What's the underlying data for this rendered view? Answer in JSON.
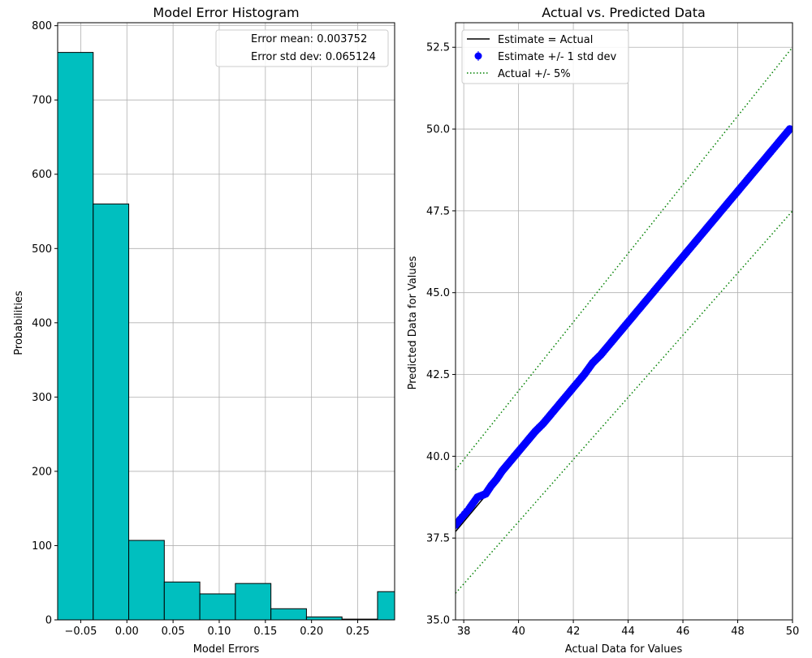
{
  "chart_data": [
    {
      "type": "bar",
      "title": "Model Error Histogram",
      "xlabel": "Model Errors",
      "ylabel": "Probabilities",
      "xlim": [
        -0.075,
        0.29
      ],
      "ylim": [
        0,
        804
      ],
      "xticks": [
        -0.05,
        0.0,
        0.05,
        0.1,
        0.15,
        0.2,
        0.25
      ],
      "xtick_labels": [
        "−0.05",
        "0.00",
        "0.05",
        "0.10",
        "0.15",
        "0.20",
        "0.25"
      ],
      "yticks": [
        0,
        100,
        200,
        300,
        400,
        500,
        600,
        700,
        800
      ],
      "ytick_labels": [
        "0",
        "100",
        "200",
        "300",
        "400",
        "500",
        "600",
        "700",
        "800"
      ],
      "grid": true,
      "bar_color": "#00bfbf",
      "bin_edges": [
        -0.075,
        -0.0365,
        0.002,
        0.0405,
        0.079,
        0.1175,
        0.156,
        0.1945,
        0.233,
        0.2715,
        0.31
      ],
      "values": [
        764,
        560,
        107,
        51,
        35,
        49,
        15,
        4,
        1,
        38
      ],
      "legend": {
        "placement": "top-right",
        "entries": [
          "Error mean: 0.003752",
          "Error std dev: 0.065124"
        ]
      }
    },
    {
      "type": "scatter",
      "title": "Actual vs. Predicted Data",
      "xlabel": "Actual Data for Values",
      "ylabel": "Predicted Data for Values",
      "xlim": [
        37.7,
        50.0
      ],
      "ylim": [
        35.0,
        53.25
      ],
      "xticks": [
        38,
        40,
        42,
        44,
        46,
        48,
        50
      ],
      "xtick_labels": [
        "38",
        "40",
        "42",
        "44",
        "46",
        "48",
        "50"
      ],
      "yticks": [
        35.0,
        37.5,
        40.0,
        42.5,
        45.0,
        47.5,
        50.0,
        52.5
      ],
      "ytick_labels": [
        "35.0",
        "37.5",
        "40.0",
        "42.5",
        "45.0",
        "47.5",
        "50.0",
        "52.5"
      ],
      "grid": true,
      "legend": {
        "placement": "top-left",
        "entries": [
          "Estimate = Actual",
          "Estimate +/- 1 std dev",
          "Actual +/- 5%"
        ]
      },
      "series": [
        {
          "name": "Estimate = Actual",
          "kind": "line",
          "color": "#000000",
          "x": [
            37.7,
            50.0
          ],
          "y": [
            37.7,
            50.0
          ]
        },
        {
          "name": "Estimate +/- 1 std dev",
          "kind": "points",
          "color": "#0000ff",
          "x": [
            37.7,
            38.2,
            38.5,
            38.8,
            39.0,
            39.2,
            39.4,
            39.6,
            39.8,
            40.0,
            40.3,
            40.6,
            40.9,
            41.2,
            41.5,
            41.8,
            42.1,
            42.4,
            42.7,
            43.0,
            43.3,
            43.6,
            43.9,
            44.2,
            44.5,
            44.8,
            45.1,
            45.4,
            45.7,
            46.0,
            46.3,
            46.6,
            46.9,
            47.2,
            47.5,
            47.8,
            48.1,
            48.4,
            48.7,
            49.0,
            49.3,
            49.6,
            49.9
          ],
          "y": [
            37.9,
            38.4,
            38.75,
            38.85,
            39.1,
            39.3,
            39.55,
            39.75,
            39.95,
            40.15,
            40.45,
            40.75,
            41.0,
            41.3,
            41.6,
            41.9,
            42.2,
            42.5,
            42.85,
            43.1,
            43.4,
            43.7,
            44.0,
            44.3,
            44.6,
            44.9,
            45.2,
            45.5,
            45.8,
            46.1,
            46.4,
            46.7,
            47.0,
            47.3,
            47.6,
            47.9,
            48.2,
            48.5,
            48.8,
            49.1,
            49.4,
            49.7,
            50.0
          ]
        },
        {
          "name": "Actual +/- 5%",
          "kind": "dotted",
          "color": "#008000",
          "x": [
            37.7,
            50.0
          ],
          "y": [
            39.585,
            52.5
          ],
          "y2": [
            35.815,
            47.5
          ]
        }
      ]
    }
  ]
}
